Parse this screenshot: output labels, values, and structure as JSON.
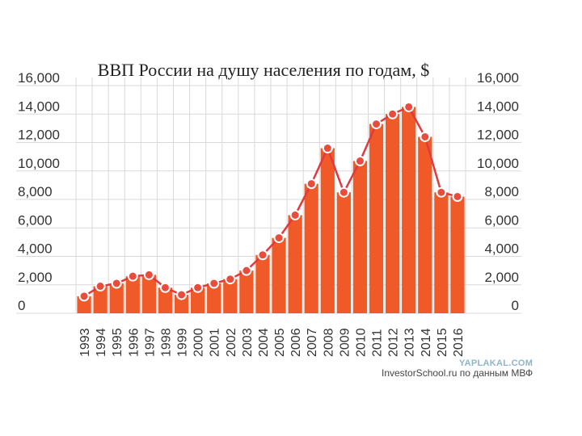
{
  "chart_data": {
    "type": "bar",
    "title": "ВВП России на душу населения по годам, $",
    "xlabel": "",
    "ylabel": "",
    "ylim": [
      0,
      16000
    ],
    "y_ticks": [
      "0",
      "2,000",
      "4,000",
      "6,000",
      "8,000",
      "10,000",
      "12,000",
      "14,000",
      "16,000"
    ],
    "grid": true,
    "overlay": "line-with-markers",
    "categories": [
      "1993",
      "1994",
      "1995",
      "1996",
      "1997",
      "1998",
      "1999",
      "2000",
      "2001",
      "2002",
      "2003",
      "2004",
      "2005",
      "2006",
      "2007",
      "2008",
      "2009",
      "2010",
      "2011",
      "2012",
      "2013",
      "2014",
      "2015",
      "2016"
    ],
    "values": [
      1200,
      1900,
      2100,
      2600,
      2700,
      1800,
      1300,
      1800,
      2100,
      2400,
      3000,
      4100,
      5300,
      6900,
      9100,
      11600,
      8500,
      10700,
      13300,
      14000,
      14500,
      12400,
      8500,
      8200
    ],
    "colors": {
      "bar": "#f05a28",
      "line": "#e0393e",
      "marker_fill": "#e84c3d",
      "marker_stroke": "#ffffff",
      "grid": "#d9d9d9"
    }
  },
  "watermark": "YAPLAKAL.COM",
  "source": "InvestorSchool.ru по данным МВФ"
}
